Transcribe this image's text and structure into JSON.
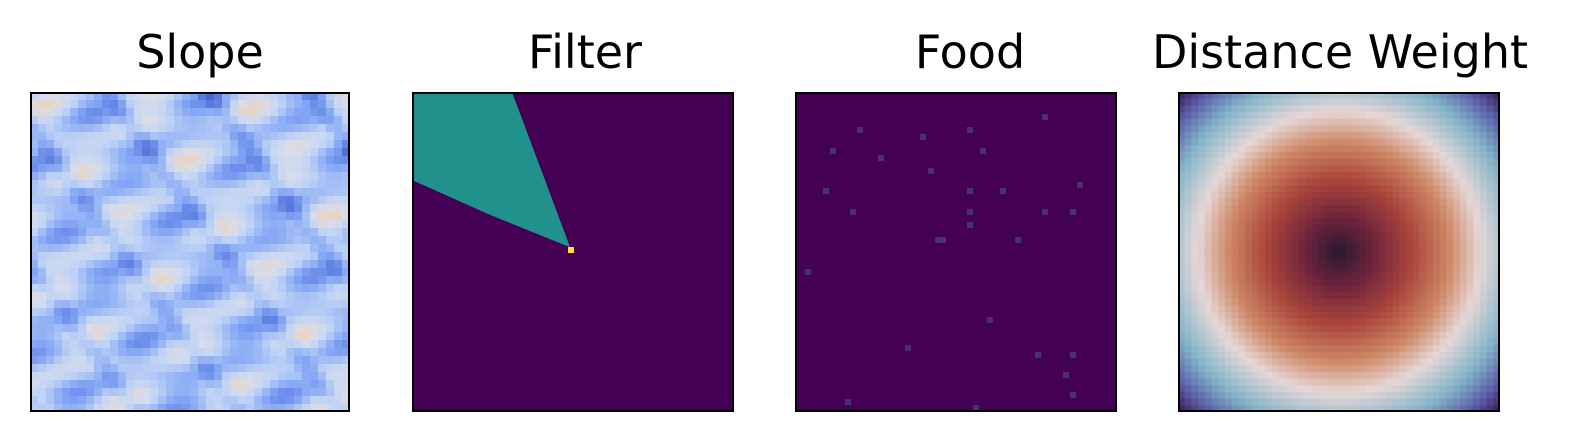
{
  "chart_data": [
    {
      "type": "heatmap",
      "title": "Slope",
      "colormap": "coolwarm",
      "grid": false,
      "axes_ticks": false
    },
    {
      "type": "heatmap",
      "title": "Filter",
      "colormap": "viridis",
      "grid": false,
      "axes_ticks": false
    },
    {
      "type": "heatmap",
      "title": "Food",
      "colormap": "viridis",
      "grid": false,
      "axes_ticks": false
    },
    {
      "type": "heatmap",
      "title": "Distance Weight",
      "colormap": "twilight_shifted",
      "grid": false,
      "axes_ticks": false
    }
  ]
}
